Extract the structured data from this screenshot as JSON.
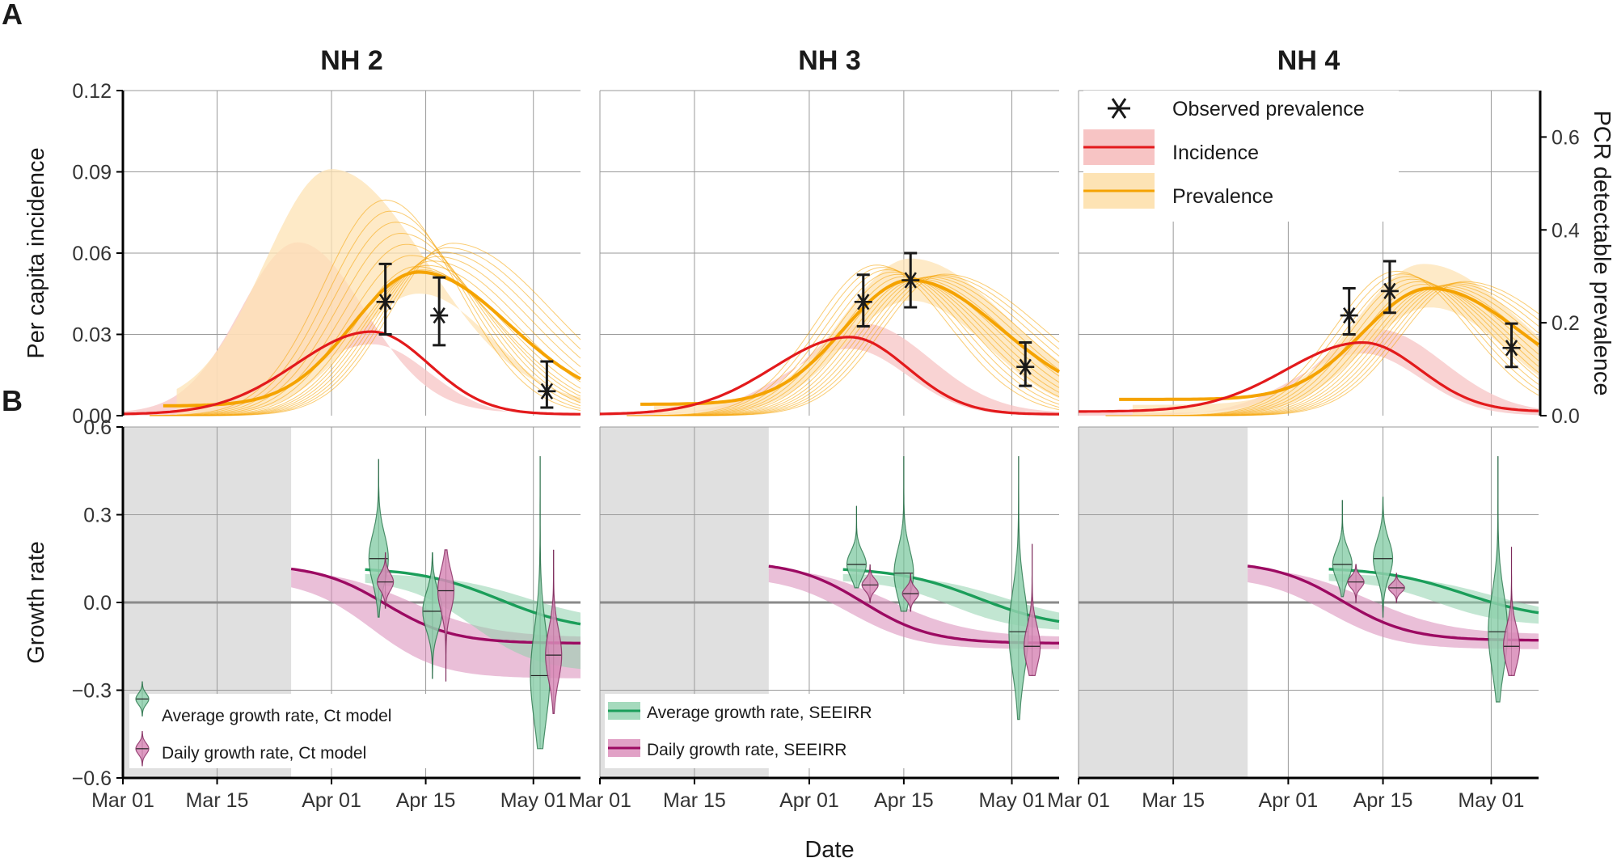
{
  "figure": {
    "panel_a_letter": "A",
    "panel_b_letter": "B",
    "xlabel": "Date"
  },
  "chart_data": [
    {
      "type": "line",
      "panel": "A",
      "facets": [
        {
          "title": "NH 2",
          "observed": [
            {
              "date": "Apr 09",
              "value": 0.042,
              "low": 0.03,
              "high": 0.056
            },
            {
              "date": "Apr 17",
              "value": 0.037,
              "low": 0.026,
              "high": 0.051
            },
            {
              "date": "May 03",
              "value": 0.009,
              "low": 0.003,
              "high": 0.02
            }
          ],
          "incidence": {
            "peak_date": "Apr 07",
            "peak": 0.031,
            "end": 0.001,
            "band_peak_date": "Mar 27",
            "band_peak": 0.064
          },
          "prevalence": {
            "peak_date": "Apr 14",
            "peak": 0.053,
            "end": 0.012,
            "band_peak_date": "Apr 01",
            "band_peak": 0.091
          }
        },
        {
          "title": "NH 3",
          "observed": [
            {
              "date": "Apr 09",
              "value": 0.042,
              "low": 0.033,
              "high": 0.052
            },
            {
              "date": "Apr 16",
              "value": 0.05,
              "low": 0.04,
              "high": 0.06
            },
            {
              "date": "May 03",
              "value": 0.018,
              "low": 0.011,
              "high": 0.027
            }
          ],
          "incidence": {
            "peak_date": "Apr 07",
            "peak": 0.029,
            "end": 0.001,
            "band_peak_date": "Apr 09",
            "band_peak": 0.034
          },
          "prevalence": {
            "peak_date": "Apr 16",
            "peak": 0.05,
            "end": 0.014,
            "band_peak_date": "Apr 16",
            "band_peak": 0.058
          }
        },
        {
          "title": "NH 4",
          "observed": [
            {
              "date": "Apr 10",
              "value": 0.037,
              "low": 0.03,
              "high": 0.047
            },
            {
              "date": "Apr 16",
              "value": 0.046,
              "low": 0.038,
              "high": 0.057
            },
            {
              "date": "May 04",
              "value": 0.025,
              "low": 0.018,
              "high": 0.034
            }
          ],
          "incidence": {
            "peak_date": "Apr 12",
            "peak": 0.027,
            "end": 0.003,
            "band_peak_date": "Apr 14",
            "band_peak": 0.032
          },
          "prevalence": {
            "peak_date": "Apr 22",
            "peak": 0.047,
            "end": 0.02,
            "band_peak_date": "Apr 21",
            "band_peak": 0.056
          }
        }
      ],
      "x_ticks": [
        "Mar 01",
        "Mar 15",
        "Apr 01",
        "Apr 15",
        "May 01"
      ],
      "xlim": [
        "Mar 01",
        "May 08"
      ],
      "ylabel": "Per capita incidence",
      "ylim": [
        0,
        0.12
      ],
      "y_ticks": [
        "0.00",
        "0.03",
        "0.06",
        "0.09",
        "0.12"
      ],
      "y2label": "PCR detectable prevalence",
      "y2lim": [
        0,
        0.7
      ],
      "y2_ticks": [
        "0.0",
        "0.2",
        "0.4",
        "0.6"
      ],
      "legend": {
        "placement": "top-right",
        "entries": [
          "Observed prevalence",
          "Incidence",
          "Prevalence"
        ]
      },
      "colors": {
        "incidence": "#e31a1c",
        "incidence_band": "#f7c4c4",
        "prevalence": "#f5a300",
        "prevalence_band": "#fde3b4",
        "observed": "#1a1a1a"
      }
    },
    {
      "type": "line",
      "panel": "B",
      "facets": [
        {
          "title": "NH 2",
          "shade_until": "Mar 26",
          "daily_seeirr": {
            "start_date": "Mar 26",
            "start": 0.1,
            "end": -0.14,
            "band_low_end": -0.26,
            "band_high_end": -0.12
          },
          "average_seeirr": {
            "start_date": "Apr 06",
            "start": 0.09,
            "end": -0.1,
            "band_low_end": -0.24,
            "band_high_end": -0.07
          },
          "violins_average": [
            {
              "date": "Apr 08",
              "median": 0.15,
              "low": -0.05,
              "high": 0.49
            },
            {
              "date": "Apr 16",
              "median": -0.03,
              "low": -0.26,
              "high": 0.17
            },
            {
              "date": "May 02",
              "median": -0.25,
              "low": -0.5,
              "high": 0.5
            }
          ],
          "violins_daily": [
            {
              "date": "Apr 09",
              "median": 0.07,
              "low": -0.02,
              "high": 0.17
            },
            {
              "date": "Apr 18",
              "median": 0.04,
              "low": -0.27,
              "high": 0.18
            },
            {
              "date": "May 04",
              "median": -0.18,
              "low": -0.38,
              "high": 0.18
            }
          ]
        },
        {
          "title": "NH 3",
          "shade_until": "Mar 26",
          "daily_seeirr": {
            "start_date": "Mar 26",
            "start": 0.11,
            "end": -0.14,
            "band_low_end": -0.16,
            "band_high_end": -0.12
          },
          "average_seeirr": {
            "start_date": "Apr 06",
            "start": 0.09,
            "end": -0.09,
            "band_low_end": -0.1,
            "band_high_end": -0.07
          },
          "violins_average": [
            {
              "date": "Apr 08",
              "median": 0.13,
              "low": 0.05,
              "high": 0.33
            },
            {
              "date": "Apr 15",
              "median": 0.1,
              "low": -0.03,
              "high": 0.5
            },
            {
              "date": "May 02",
              "median": -0.1,
              "low": -0.4,
              "high": 0.5
            }
          ],
          "violins_daily": [
            {
              "date": "Apr 10",
              "median": 0.06,
              "low": 0.0,
              "high": 0.13
            },
            {
              "date": "Apr 16",
              "median": 0.03,
              "low": -0.03,
              "high": 0.1
            },
            {
              "date": "May 04",
              "median": -0.15,
              "low": -0.25,
              "high": 0.2
            }
          ]
        },
        {
          "title": "NH 4",
          "shade_until": "Mar 26",
          "daily_seeirr": {
            "start_date": "Mar 26",
            "start": 0.11,
            "end": -0.13,
            "band_low_end": -0.16,
            "band_high_end": -0.11
          },
          "average_seeirr": {
            "start_date": "Apr 07",
            "start": 0.09,
            "end": -0.06,
            "band_low_end": -0.08,
            "band_high_end": -0.05
          },
          "violins_average": [
            {
              "date": "Apr 09",
              "median": 0.13,
              "low": 0.02,
              "high": 0.35
            },
            {
              "date": "Apr 15",
              "median": 0.15,
              "low": -0.05,
              "high": 0.36
            },
            {
              "date": "May 02",
              "median": -0.1,
              "low": -0.34,
              "high": 0.5
            }
          ],
          "violins_daily": [
            {
              "date": "Apr 11",
              "median": 0.07,
              "low": 0.0,
              "high": 0.13
            },
            {
              "date": "Apr 17",
              "median": 0.05,
              "low": 0.0,
              "high": 0.1
            },
            {
              "date": "May 04",
              "median": -0.15,
              "low": -0.25,
              "high": 0.19
            }
          ]
        }
      ],
      "x_ticks": [
        "Mar 01",
        "Mar 15",
        "Apr 01",
        "Apr 15",
        "May 01"
      ],
      "xlim": [
        "Mar 01",
        "May 08"
      ],
      "ylabel": "Growth rate",
      "ylim": [
        -0.6,
        0.6
      ],
      "y_ticks": [
        "0.6",
        "0.3",
        "0.0",
        "−0.3",
        "−0.6"
      ],
      "legends": [
        {
          "placement": "bottom-left",
          "facet": "NH 2",
          "entries": [
            "Average growth rate, Ct model",
            "Daily growth rate, Ct model"
          ]
        },
        {
          "placement": "bottom-left",
          "facet": "NH 3",
          "entries": [
            "Average growth rate, SEEIRR",
            "Daily growth rate, SEEIRR"
          ]
        }
      ],
      "colors": {
        "average": "#1b9e5a",
        "average_fill": "#8fd1ad",
        "daily": "#9c0a62",
        "daily_fill": "#d98ab8",
        "shade": "#e0e0e0",
        "zero_line": "#8a8a8a"
      }
    }
  ]
}
